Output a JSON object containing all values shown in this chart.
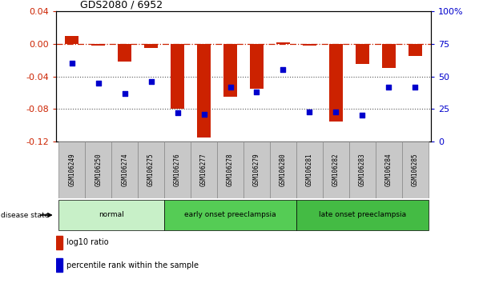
{
  "title": "GDS2080 / 6952",
  "samples": [
    "GSM106249",
    "GSM106250",
    "GSM106274",
    "GSM106275",
    "GSM106276",
    "GSM106277",
    "GSM106278",
    "GSM106279",
    "GSM106280",
    "GSM106281",
    "GSM106282",
    "GSM106283",
    "GSM106284",
    "GSM106285"
  ],
  "log10_ratio": [
    0.01,
    -0.002,
    -0.022,
    -0.005,
    -0.08,
    -0.115,
    -0.065,
    -0.055,
    0.002,
    -0.002,
    -0.095,
    -0.025,
    -0.03,
    -0.015
  ],
  "percentile": [
    60,
    45,
    37,
    46,
    22,
    21,
    42,
    38,
    55,
    23,
    23,
    20,
    42,
    42
  ],
  "ylim_left": [
    -0.12,
    0.04
  ],
  "ylim_right": [
    0,
    100
  ],
  "yticks_left": [
    -0.12,
    -0.08,
    -0.04,
    0.0,
    0.04
  ],
  "yticks_right": [
    0,
    25,
    50,
    75,
    100
  ],
  "ytick_labels_right": [
    "0",
    "25",
    "50",
    "75",
    "100%"
  ],
  "bar_color": "#cc2200",
  "dot_color": "#0000cc",
  "hline_color": "#cc2200",
  "dotted_color": "#555555",
  "bar_width": 0.5,
  "disease_state_label": "disease state",
  "legend_bar_label": "log10 ratio",
  "legend_dot_label": "percentile rank within the sample",
  "group_box_color": "#c8c8c8",
  "group_bounds": [
    [
      0,
      3,
      "normal",
      "#c8f0c8"
    ],
    [
      4,
      8,
      "early onset preeclampsia",
      "#55cc55"
    ],
    [
      9,
      13,
      "late onset preeclampsia",
      "#44bb44"
    ]
  ]
}
